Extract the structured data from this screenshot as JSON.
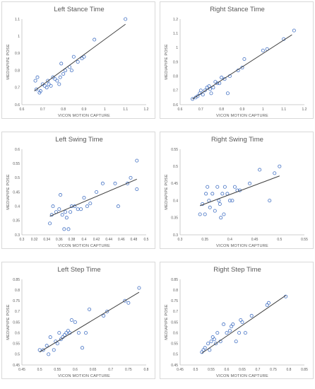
{
  "colors": {
    "point": "#4472c4",
    "trend": "#404040",
    "axis": "#bfbfbf",
    "text": "#595959",
    "border": "#d9d9d9"
  },
  "chart_data": [
    {
      "type": "scatter",
      "title": "Left Stance Time",
      "xlabel": "VICON MOTION CAPTURE",
      "ylabel": "MEDIAPIPE POSE",
      "xlim": [
        0.6,
        1.2
      ],
      "ylim": [
        0.6,
        1.1
      ],
      "xticks": [
        "0.6",
        "0.7",
        "0.8",
        "0.9",
        "1",
        "1.1",
        "1.2"
      ],
      "yticks": [
        "0.6",
        "0.7",
        "0.8",
        "0.9",
        "1",
        "1.1"
      ],
      "grid": false,
      "trendline": true,
      "points": [
        [
          0.665,
          0.74
        ],
        [
          0.67,
          0.69
        ],
        [
          0.675,
          0.76
        ],
        [
          0.685,
          0.67
        ],
        [
          0.69,
          0.68
        ],
        [
          0.7,
          0.72
        ],
        [
          0.71,
          0.71
        ],
        [
          0.72,
          0.7
        ],
        [
          0.725,
          0.74
        ],
        [
          0.73,
          0.72
        ],
        [
          0.74,
          0.71
        ],
        [
          0.75,
          0.76
        ],
        [
          0.76,
          0.75
        ],
        [
          0.77,
          0.74
        ],
        [
          0.78,
          0.72
        ],
        [
          0.785,
          0.76
        ],
        [
          0.79,
          0.84
        ],
        [
          0.8,
          0.78
        ],
        [
          0.81,
          0.8
        ],
        [
          0.83,
          0.82
        ],
        [
          0.84,
          0.8
        ],
        [
          0.85,
          0.88
        ],
        [
          0.87,
          0.85
        ],
        [
          0.89,
          0.87
        ],
        [
          0.9,
          0.88
        ],
        [
          0.95,
          0.98
        ],
        [
          1.1,
          1.1
        ]
      ],
      "trend_line": [
        [
          0.66,
          0.68
        ],
        [
          1.1,
          1.07
        ]
      ]
    },
    {
      "type": "scatter",
      "title": "Right Stance Time",
      "xlabel": "VICON MOTION CAPTURE",
      "ylabel": "MEDIAPIPE POSE",
      "xlim": [
        0.6,
        1.2
      ],
      "ylim": [
        0.6,
        1.2
      ],
      "xticks": [
        "0.6",
        "0.7",
        "0.8",
        "0.9",
        "1",
        "1.1",
        "1.2"
      ],
      "yticks": [
        "0.6",
        "0.7",
        "0.8",
        "0.9",
        "1",
        "1.1",
        "1.2"
      ],
      "grid": false,
      "trendline": true,
      "points": [
        [
          0.66,
          0.64
        ],
        [
          0.675,
          0.65
        ],
        [
          0.685,
          0.66
        ],
        [
          0.695,
          0.68
        ],
        [
          0.7,
          0.7
        ],
        [
          0.71,
          0.67
        ],
        [
          0.72,
          0.7
        ],
        [
          0.73,
          0.72
        ],
        [
          0.74,
          0.73
        ],
        [
          0.745,
          0.71
        ],
        [
          0.75,
          0.68
        ],
        [
          0.76,
          0.72
        ],
        [
          0.77,
          0.76
        ],
        [
          0.78,
          0.75
        ],
        [
          0.79,
          0.75
        ],
        [
          0.8,
          0.79
        ],
        [
          0.815,
          0.78
        ],
        [
          0.83,
          0.68
        ],
        [
          0.84,
          0.8
        ],
        [
          0.88,
          0.84
        ],
        [
          0.9,
          0.86
        ],
        [
          0.91,
          0.92
        ],
        [
          1.0,
          0.98
        ],
        [
          1.02,
          0.99
        ],
        [
          1.1,
          1.06
        ],
        [
          1.15,
          1.12
        ]
      ],
      "trend_line": [
        [
          0.66,
          0.64
        ],
        [
          1.14,
          1.09
        ]
      ]
    },
    {
      "type": "scatter",
      "title": "Left Swing Time",
      "xlabel": "VICON MOTION CAPTURE",
      "ylabel": "MEDIAPIPE POSE",
      "xlim": [
        0.3,
        0.5
      ],
      "ylim": [
        0.3,
        0.6
      ],
      "xticks": [
        "0.3",
        "0.32",
        "0.34",
        "0.36",
        "0.38",
        "0.4",
        "0.42",
        "0.44",
        "0.46",
        "0.48",
        "0.5"
      ],
      "yticks": [
        "0.3",
        "0.35",
        "0.4",
        "0.45",
        "0.5",
        "0.55",
        "0.6"
      ],
      "grid": false,
      "trendline": true,
      "points": [
        [
          0.345,
          0.34
        ],
        [
          0.348,
          0.37
        ],
        [
          0.35,
          0.4
        ],
        [
          0.355,
          0.38
        ],
        [
          0.36,
          0.39
        ],
        [
          0.362,
          0.44
        ],
        [
          0.365,
          0.37
        ],
        [
          0.368,
          0.32
        ],
        [
          0.37,
          0.38
        ],
        [
          0.372,
          0.36
        ],
        [
          0.375,
          0.32
        ],
        [
          0.378,
          0.38
        ],
        [
          0.38,
          0.4
        ],
        [
          0.385,
          0.4
        ],
        [
          0.39,
          0.39
        ],
        [
          0.395,
          0.39
        ],
        [
          0.4,
          0.43
        ],
        [
          0.405,
          0.4
        ],
        [
          0.41,
          0.41
        ],
        [
          0.42,
          0.45
        ],
        [
          0.43,
          0.48
        ],
        [
          0.45,
          0.48
        ],
        [
          0.455,
          0.4
        ],
        [
          0.47,
          0.48
        ],
        [
          0.475,
          0.5
        ],
        [
          0.485,
          0.46
        ],
        [
          0.485,
          0.56
        ]
      ],
      "trend_line": [
        [
          0.345,
          0.365
        ],
        [
          0.485,
          0.495
        ]
      ]
    },
    {
      "type": "scatter",
      "title": "Right Swing Time",
      "xlabel": "VICON MOTION CAPTURE",
      "ylabel": "MEDIAPIPE POSE",
      "xlim": [
        0.3,
        0.55
      ],
      "ylim": [
        0.3,
        0.55
      ],
      "xticks": [
        "0.3",
        "0.35",
        "0.4",
        "0.45",
        "0.5",
        "0.55"
      ],
      "yticks": [
        "0.3",
        "0.35",
        "0.4",
        "0.45",
        "0.5",
        "0.55"
      ],
      "grid": false,
      "trendline": true,
      "points": [
        [
          0.34,
          0.36
        ],
        [
          0.345,
          0.39
        ],
        [
          0.35,
          0.36
        ],
        [
          0.352,
          0.42
        ],
        [
          0.355,
          0.44
        ],
        [
          0.358,
          0.4
        ],
        [
          0.36,
          0.38
        ],
        [
          0.365,
          0.42
        ],
        [
          0.37,
          0.37
        ],
        [
          0.375,
          0.44
        ],
        [
          0.378,
          0.4
        ],
        [
          0.38,
          0.39
        ],
        [
          0.382,
          0.35
        ],
        [
          0.385,
          0.42
        ],
        [
          0.388,
          0.36
        ],
        [
          0.39,
          0.44
        ],
        [
          0.395,
          0.42
        ],
        [
          0.4,
          0.4
        ],
        [
          0.405,
          0.4
        ],
        [
          0.41,
          0.44
        ],
        [
          0.415,
          0.43
        ],
        [
          0.42,
          0.43
        ],
        [
          0.44,
          0.45
        ],
        [
          0.46,
          0.49
        ],
        [
          0.48,
          0.4
        ],
        [
          0.49,
          0.48
        ],
        [
          0.5,
          0.5
        ]
      ],
      "trend_line": [
        [
          0.34,
          0.385
        ],
        [
          0.5,
          0.472
        ]
      ]
    },
    {
      "type": "scatter",
      "title": "Left Step Time",
      "xlabel": "VICON MOTION CAPTURE",
      "ylabel": "MEDIAPIPE POSE",
      "xlim": [
        0.45,
        0.8
      ],
      "ylim": [
        0.45,
        0.85
      ],
      "xticks": [
        "0.45",
        "0.5",
        "0.55",
        "0.6",
        "0.65",
        "0.7",
        "0.75",
        "0.8"
      ],
      "yticks": [
        "0.45",
        "0.5",
        "0.55",
        "0.6",
        "0.65",
        "0.7",
        "0.75",
        "0.8",
        "0.85"
      ],
      "grid": false,
      "trendline": true,
      "points": [
        [
          0.5,
          0.52
        ],
        [
          0.51,
          0.52
        ],
        [
          0.52,
          0.54
        ],
        [
          0.525,
          0.5
        ],
        [
          0.53,
          0.58
        ],
        [
          0.54,
          0.52
        ],
        [
          0.545,
          0.56
        ],
        [
          0.55,
          0.55
        ],
        [
          0.555,
          0.6
        ],
        [
          0.56,
          0.57
        ],
        [
          0.565,
          0.58
        ],
        [
          0.57,
          0.59
        ],
        [
          0.575,
          0.6
        ],
        [
          0.58,
          0.61
        ],
        [
          0.585,
          0.6
        ],
        [
          0.59,
          0.66
        ],
        [
          0.6,
          0.65
        ],
        [
          0.61,
          0.6
        ],
        [
          0.62,
          0.53
        ],
        [
          0.63,
          0.6
        ],
        [
          0.64,
          0.71
        ],
        [
          0.68,
          0.68
        ],
        [
          0.69,
          0.7
        ],
        [
          0.74,
          0.75
        ],
        [
          0.75,
          0.74
        ],
        [
          0.78,
          0.81
        ]
      ],
      "trend_line": [
        [
          0.5,
          0.51
        ],
        [
          0.78,
          0.79
        ]
      ]
    },
    {
      "type": "scatter",
      "title": "Right Step Time",
      "xlabel": "VICON MOTION CAPTURE",
      "ylabel": "MEDIAPIPE POSE",
      "xlim": [
        0.45,
        0.85
      ],
      "ylim": [
        0.45,
        0.85
      ],
      "xticks": [
        "0.45",
        "0.5",
        "0.55",
        "0.6",
        "0.65",
        "0.7",
        "0.75",
        "0.8",
        "0.85"
      ],
      "yticks": [
        "0.45",
        "0.5",
        "0.55",
        "0.6",
        "0.65",
        "0.7",
        "0.75",
        "0.8",
        "0.85"
      ],
      "grid": false,
      "trendline": true,
      "points": [
        [
          0.52,
          0.51
        ],
        [
          0.525,
          0.52
        ],
        [
          0.53,
          0.53
        ],
        [
          0.54,
          0.55
        ],
        [
          0.545,
          0.52
        ],
        [
          0.55,
          0.56
        ],
        [
          0.555,
          0.58
        ],
        [
          0.56,
          0.57
        ],
        [
          0.565,
          0.55
        ],
        [
          0.57,
          0.6
        ],
        [
          0.58,
          0.56
        ],
        [
          0.59,
          0.64
        ],
        [
          0.6,
          0.6
        ],
        [
          0.61,
          0.61
        ],
        [
          0.615,
          0.63
        ],
        [
          0.62,
          0.64
        ],
        [
          0.63,
          0.56
        ],
        [
          0.64,
          0.6
        ],
        [
          0.645,
          0.66
        ],
        [
          0.65,
          0.65
        ],
        [
          0.66,
          0.6
        ],
        [
          0.68,
          0.68
        ],
        [
          0.73,
          0.73
        ],
        [
          0.735,
          0.74
        ],
        [
          0.79,
          0.77
        ]
      ],
      "trend_line": [
        [
          0.52,
          0.505
        ],
        [
          0.79,
          0.775
        ]
      ]
    }
  ]
}
